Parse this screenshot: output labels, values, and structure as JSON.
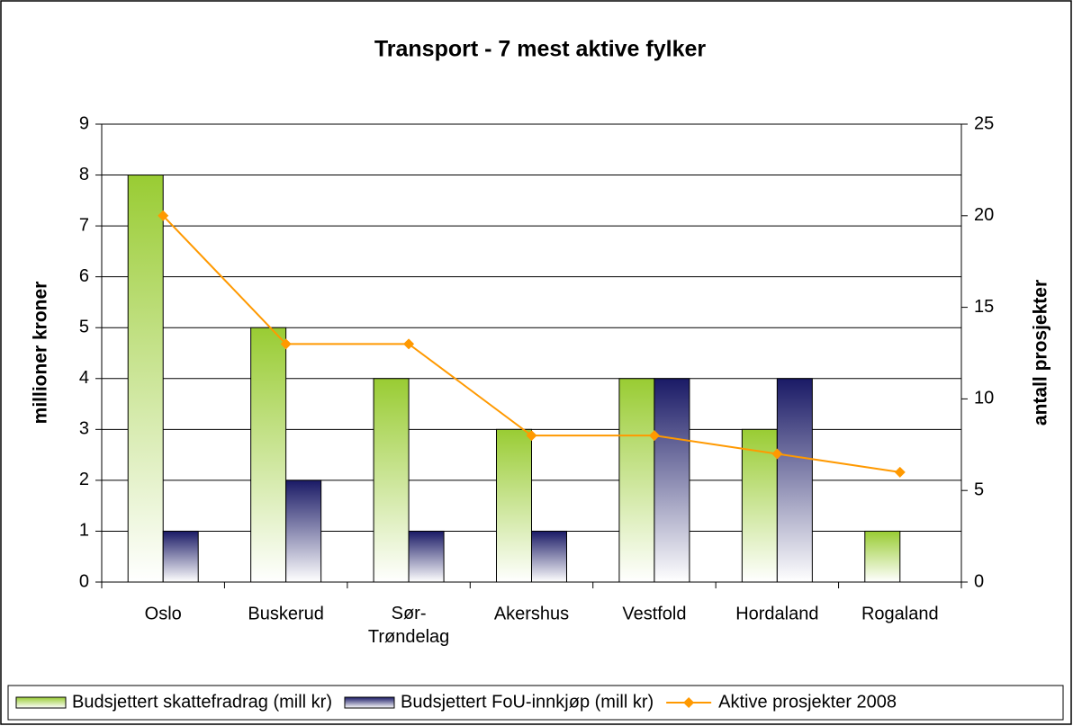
{
  "chart_data": {
    "type": "bar",
    "title": "Transport - 7 mest aktive fylker",
    "ylabel": "millioner kroner",
    "y2label": "antall prosjekter",
    "categories": [
      "Oslo",
      "Buskerud",
      "Sør-Trøndelag",
      "Akershus",
      "Vestfold",
      "Hordaland",
      "Rogaland"
    ],
    "series": [
      {
        "name": "Budsjettert skattefradrag (mill kr)",
        "type": "bar",
        "color": "#99cc33",
        "values": [
          8,
          5,
          4,
          3,
          4,
          3,
          1
        ]
      },
      {
        "name": "Budsjettert FoU-innkjøp (mill kr)",
        "type": "bar",
        "color": "#1a1a66",
        "values": [
          1,
          2,
          1,
          1,
          4,
          4,
          null
        ]
      },
      {
        "name": "Aktive prosjekter 2008",
        "type": "line",
        "axis": "y2",
        "color": "#ff9900",
        "values": [
          20,
          13,
          13,
          8,
          8,
          7,
          6
        ]
      }
    ],
    "ylim": [
      0,
      9
    ],
    "yticks": [
      0,
      1,
      2,
      3,
      4,
      5,
      6,
      7,
      8,
      9
    ],
    "y2lim": [
      0,
      25
    ],
    "y2ticks": [
      0,
      5,
      10,
      15,
      20,
      25
    ],
    "grid": true,
    "legend": "bottom"
  }
}
